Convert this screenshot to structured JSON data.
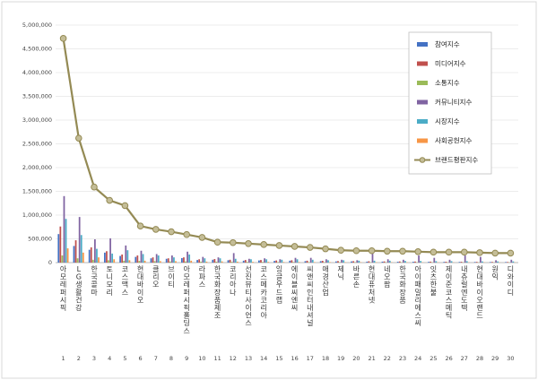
{
  "chart_data": {
    "type": "bar",
    "title": "",
    "xlabel": "",
    "ylabel": "",
    "ylim": [
      0,
      5000000
    ],
    "yticks": [
      "0",
      "500,000",
      "1,000,000",
      "1,500,000",
      "2,000,000",
      "2,500,000",
      "3,000,000",
      "3,500,000",
      "4,000,000",
      "4,500,000",
      "5,000,000"
    ],
    "grid": true,
    "legend_position": "top-right",
    "ranks": [
      "1",
      "2",
      "3",
      "4",
      "5",
      "6",
      "7",
      "8",
      "9",
      "10",
      "11",
      "12",
      "13",
      "14",
      "15",
      "16",
      "17",
      "18",
      "19",
      "20",
      "21",
      "22",
      "23",
      "24",
      "25",
      "26",
      "27",
      "28",
      "29",
      "30"
    ],
    "categories": [
      "아모레퍼시픽",
      "LG생활건강",
      "한국콜마",
      "토니모리",
      "코스맥스",
      "현대바이오",
      "클리오",
      "브이티",
      "아모레퍼시픽홀딩스",
      "라파스",
      "한국화장품제조",
      "코리아나",
      "선진뷰티사이언스",
      "코스메카코리아",
      "잉글우드랩",
      "에이블씨엔씨",
      "씨앤씨인터내셔널",
      "애경산업",
      "제닉",
      "바른손",
      "현대퓨처넷",
      "네오팜",
      "한국화장품",
      "아이패밀리에스씨",
      "잇츠한불",
      "제이준코스메틱",
      "내츄럴엔도텍",
      "현대바이오랜드",
      "원익",
      "디와이디"
    ],
    "series": [
      {
        "name": "참여지수",
        "color": "#4472c4",
        "values": [
          600000,
          350000,
          270000,
          210000,
          140000,
          120000,
          90000,
          80000,
          95000,
          55000,
          60000,
          50000,
          40000,
          45000,
          35000,
          40000,
          30000,
          30000,
          25000,
          25000,
          20000,
          20000,
          18000,
          18000,
          16000,
          15000,
          14000,
          13000,
          12000,
          12000
        ]
      },
      {
        "name": "미디어지수",
        "color": "#c0504d",
        "values": [
          760000,
          470000,
          320000,
          240000,
          170000,
          150000,
          110000,
          90000,
          110000,
          70000,
          75000,
          60000,
          55000,
          55000,
          45000,
          50000,
          40000,
          38000,
          32000,
          30000,
          28000,
          25000,
          24000,
          22000,
          20000,
          18000,
          17000,
          15000,
          14000,
          13000
        ]
      },
      {
        "name": "소통지수",
        "color": "#9bbb59",
        "values": [
          150000,
          90000,
          60000,
          50000,
          40000,
          35000,
          30000,
          25000,
          25000,
          20000,
          18000,
          16000,
          15000,
          14000,
          12000,
          12000,
          10000,
          10000,
          9000,
          8000,
          8000,
          7000,
          7000,
          6000,
          6000,
          5000,
          5000,
          5000,
          4000,
          4000
        ]
      },
      {
        "name": "커뮤니티지수",
        "color": "#8064a2",
        "values": [
          1400000,
          960000,
          490000,
          510000,
          360000,
          250000,
          180000,
          150000,
          230000,
          120000,
          110000,
          200000,
          80000,
          90000,
          70000,
          100000,
          100000,
          70000,
          60000,
          50000,
          200000,
          70000,
          60000,
          150000,
          100000,
          60000,
          150000,
          120000,
          50000,
          60000
        ]
      },
      {
        "name": "시장지수",
        "color": "#4bacc6",
        "values": [
          920000,
          580000,
          290000,
          190000,
          260000,
          180000,
          150000,
          110000,
          170000,
          90000,
          90000,
          80000,
          70000,
          70000,
          60000,
          70000,
          60000,
          50000,
          50000,
          40000,
          40000,
          40000,
          35000,
          35000,
          30000,
          30000,
          30000,
          25000,
          25000,
          25000
        ]
      },
      {
        "name": "사회공헌지수",
        "color": "#f79646",
        "values": [
          300000,
          210000,
          110000,
          70000,
          50000,
          40000,
          30000,
          30000,
          40000,
          20000,
          25000,
          20000,
          15000,
          15000,
          12000,
          12000,
          10000,
          10000,
          8000,
          8000,
          8000,
          7000,
          7000,
          6000,
          6000,
          5000,
          5000,
          5000,
          4000,
          4000
        ]
      }
    ],
    "line": {
      "name": "브랜드평판지수",
      "color": "#948a54",
      "values": [
        4720000,
        2620000,
        1590000,
        1310000,
        1200000,
        770000,
        700000,
        650000,
        590000,
        530000,
        430000,
        420000,
        400000,
        380000,
        360000,
        340000,
        320000,
        290000,
        260000,
        250000,
        250000,
        240000,
        240000,
        230000,
        220000,
        220000,
        220000,
        210000,
        200000,
        200000
      ]
    }
  }
}
